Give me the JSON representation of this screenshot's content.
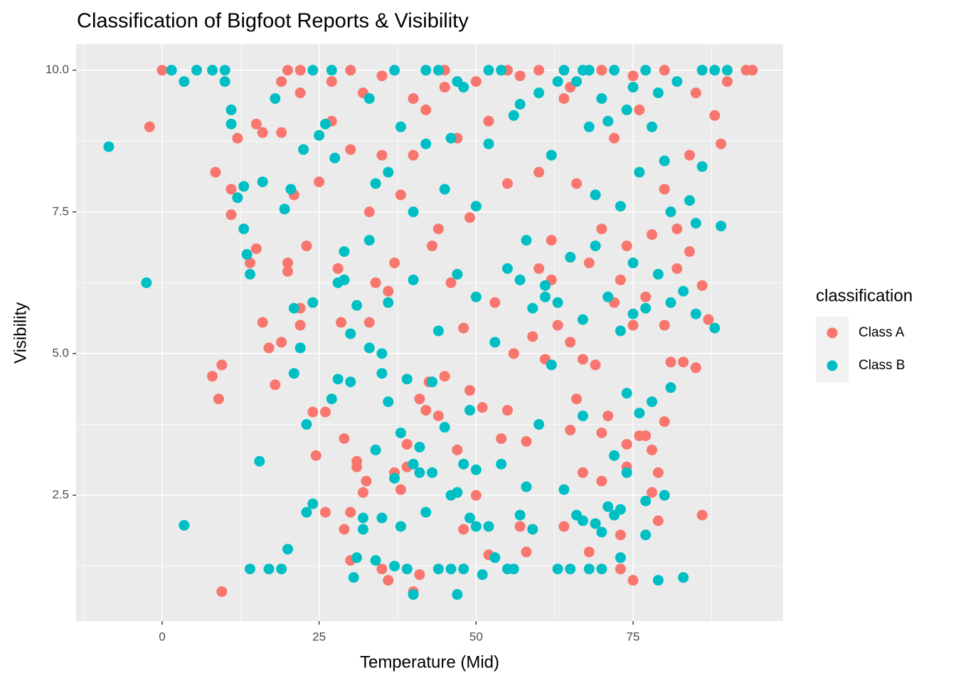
{
  "chart_data": {
    "type": "scatter",
    "title": "Classification of Bigfoot Reports & Visibility",
    "x_label": "Temperature (Mid)",
    "y_label": "Visibility",
    "legend_title": "classification",
    "legend_position": "right",
    "grid": true,
    "xlim": [
      -13.7,
      98.9
    ],
    "ylim": [
      0.28,
      10.46
    ],
    "xticks": [
      0,
      25,
      50,
      75
    ],
    "yticks": [
      {
        "value": 2.5,
        "label": "2.5"
      },
      {
        "value": 5,
        "label": "5.0"
      },
      {
        "value": 7.5,
        "label": "7.5"
      },
      {
        "value": 10,
        "label": "10.0"
      }
    ],
    "xminor": [
      -12.5,
      12.5,
      37.5,
      62.5,
      87.5
    ],
    "yminor": [
      1.25,
      3.75,
      6.25,
      8.75
    ],
    "series": [
      {
        "name": "Class A",
        "color": "#F8766D",
        "x": [
          0,
          -2,
          8.5,
          11,
          11,
          12,
          15,
          14,
          16,
          17,
          18,
          19,
          20,
          20,
          21,
          22,
          23,
          24,
          24.5,
          26,
          26,
          8,
          9,
          9.5,
          9.5,
          22,
          25,
          28,
          28.5,
          29,
          29,
          30,
          30,
          31,
          31,
          32,
          32.5,
          33,
          34,
          35,
          36,
          37,
          38,
          39,
          39,
          40,
          41,
          41,
          42,
          42.5,
          44,
          45,
          47,
          48,
          49,
          50,
          51,
          52,
          54,
          55,
          57,
          58,
          58,
          60,
          62,
          64,
          65,
          66,
          67,
          68,
          70,
          70,
          71,
          73,
          73,
          74,
          74,
          75,
          76,
          77,
          78,
          78,
          79,
          79,
          80,
          81,
          83,
          85,
          86,
          87,
          88,
          89,
          90,
          93,
          94,
          35,
          38,
          40,
          42,
          44,
          45,
          47,
          49,
          52,
          55,
          57,
          60,
          62,
          64,
          66,
          68,
          70,
          72,
          74,
          76,
          78,
          80,
          82,
          84,
          30,
          32,
          35,
          40,
          45,
          50,
          55,
          60,
          65,
          70,
          75,
          80,
          85,
          20,
          22,
          27,
          19,
          22,
          15,
          16,
          19,
          27,
          30,
          33,
          36,
          37,
          43,
          46,
          48,
          53,
          56,
          59,
          61,
          63,
          65,
          67,
          69,
          72,
          73,
          75,
          77,
          80,
          82,
          84,
          86
        ],
        "values": [
          10,
          9,
          8.2,
          7.9,
          7.45,
          8.8,
          6.85,
          6.6,
          5.55,
          5.1,
          4.45,
          5.2,
          6.6,
          6.45,
          7.8,
          5.8,
          6.9,
          3.97,
          3.2,
          3.97,
          2.2,
          4.6,
          4.2,
          4.8,
          0.8,
          5.5,
          8.03,
          6.5,
          5.55,
          3.5,
          1.9,
          2.2,
          1.35,
          3.1,
          3.0,
          2.55,
          2.75,
          5.55,
          6.25,
          1.2,
          1.0,
          2.9,
          2.6,
          3.4,
          3.0,
          0.8,
          1.1,
          4.2,
          4.0,
          4.5,
          3.9,
          4.6,
          3.3,
          1.9,
          4.35,
          2.5,
          4.05,
          1.45,
          3.5,
          4.0,
          1.95,
          3.45,
          1.5,
          6.5,
          6.3,
          1.95,
          3.65,
          4.2,
          2.9,
          1.5,
          2.75,
          3.6,
          3.9,
          1.8,
          1.2,
          3.4,
          3.0,
          1.0,
          3.55,
          3.55,
          3.3,
          2.55,
          2.9,
          2.05,
          3.8,
          4.85,
          4.85,
          4.75,
          2.15,
          5.6,
          9.2,
          8.7,
          9.8,
          10,
          10,
          8.5,
          7.8,
          8.5,
          9.3,
          7.2,
          9.7,
          8.8,
          7.4,
          9.1,
          8.0,
          9.9,
          8.2,
          7.0,
          9.5,
          8.0,
          6.6,
          7.2,
          8.8,
          6.9,
          9.3,
          7.1,
          7.9,
          6.5,
          8.5,
          10,
          9.6,
          9.9,
          9.5,
          10,
          9.8,
          10,
          10,
          9.7,
          10,
          9.9,
          10,
          9.6,
          10,
          9.6,
          9.8,
          9.8,
          10,
          9.05,
          8.9,
          8.9,
          9.1,
          8.6,
          7.5,
          6.1,
          6.6,
          6.9,
          6.25,
          5.45,
          5.9,
          5.0,
          5.3,
          4.9,
          5.5,
          5.2,
          4.9,
          4.8,
          5.9,
          6.3,
          5.5,
          6.0,
          5.5,
          7.2,
          6.8,
          6.2
        ]
      },
      {
        "name": "Class B",
        "color": "#00BFC4",
        "x": [
          -8.5,
          -2.5,
          1.5,
          3.5,
          3.5,
          5.5,
          8,
          10,
          10,
          11,
          11,
          12,
          13,
          13,
          13.5,
          14,
          14,
          15.5,
          16,
          17,
          18,
          19,
          19.5,
          20,
          20.5,
          21,
          21,
          22,
          22.5,
          23,
          23,
          24,
          24,
          25,
          26,
          27,
          27.5,
          28,
          28,
          29,
          29,
          30,
          30,
          30.5,
          31,
          31,
          32,
          32,
          33,
          33,
          34,
          34,
          35,
          35,
          35,
          36,
          36,
          37,
          37,
          38,
          38,
          39,
          39,
          40,
          40,
          40,
          41,
          41,
          42,
          43,
          43,
          44,
          44,
          45,
          46,
          46,
          47,
          47,
          48,
          48,
          49,
          49,
          50,
          50,
          51,
          52,
          53,
          54,
          55,
          56,
          57,
          58,
          59,
          60,
          61,
          62,
          63,
          64,
          65,
          66,
          67,
          67,
          68,
          69,
          70,
          70,
          71,
          72,
          72,
          73,
          73,
          74,
          74,
          75,
          76,
          77,
          77,
          78,
          79,
          80,
          81,
          81,
          83,
          85,
          86,
          88,
          89,
          90,
          36,
          38,
          40,
          42,
          44,
          46,
          48,
          50,
          52,
          54,
          56,
          58,
          60,
          62,
          64,
          66,
          67,
          68,
          69,
          70,
          72,
          73,
          74,
          76,
          77,
          78,
          80,
          82,
          84,
          86,
          88,
          33,
          37,
          42,
          47,
          52,
          57,
          63,
          68,
          71,
          75,
          79,
          81,
          83,
          85,
          27,
          24,
          34,
          45,
          47,
          50,
          53,
          55,
          57,
          59,
          61,
          63,
          65,
          67,
          69,
          71,
          73,
          75,
          77,
          79
        ],
        "values": [
          8.65,
          6.25,
          10,
          9.8,
          1.97,
          10,
          10,
          9.8,
          10,
          9.05,
          9.3,
          7.75,
          7.95,
          7.2,
          6.75,
          6.4,
          1.2,
          3.1,
          8.03,
          1.2,
          9.5,
          1.2,
          7.55,
          1.55,
          7.9,
          5.8,
          4.65,
          5.1,
          8.6,
          2.2,
          3.75,
          5.9,
          2.35,
          8.85,
          9.05,
          4.2,
          8.45,
          4.55,
          6.25,
          6.8,
          6.3,
          4.5,
          5.35,
          1.05,
          1.4,
          5.85,
          1.9,
          2.1,
          7.0,
          5.1,
          1.35,
          3.3,
          2.1,
          4.65,
          5.0,
          4.15,
          5.9,
          2.8,
          1.25,
          3.6,
          1.95,
          1.2,
          4.55,
          0.75,
          3.05,
          6.3,
          3.35,
          2.9,
          2.2,
          2.9,
          4.5,
          1.2,
          5.4,
          3.7,
          2.5,
          1.2,
          0.75,
          2.55,
          3.05,
          1.2,
          2.1,
          4.0,
          2.95,
          1.95,
          1.1,
          1.95,
          1.4,
          3.05,
          1.2,
          1.2,
          2.15,
          2.65,
          1.9,
          3.75,
          6.2,
          4.8,
          1.2,
          2.6,
          1.2,
          2.15,
          3.9,
          2.05,
          1.2,
          2.0,
          1.85,
          1.2,
          2.3,
          2.15,
          3.2,
          2.25,
          1.4,
          2.9,
          4.3,
          5.7,
          3.95,
          2.4,
          1.8,
          4.15,
          1.0,
          2.5,
          4.4,
          5.9,
          1.05,
          5.7,
          8.3,
          5.45,
          7.25,
          10,
          8.2,
          9.0,
          7.5,
          8.7,
          10,
          8.8,
          9.7,
          7.6,
          8.7,
          10,
          9.2,
          7.0,
          9.6,
          8.5,
          10,
          9.8,
          10,
          9.0,
          7.8,
          9.5,
          10,
          7.6,
          9.3,
          8.2,
          10,
          9.0,
          8.4,
          9.8,
          7.7,
          10,
          10,
          9.5,
          10,
          10,
          9.8,
          10,
          9.4,
          9.8,
          10,
          9.1,
          9.7,
          9.6,
          7.5,
          6.1,
          7.3,
          10,
          10,
          8.0,
          7.9,
          6.4,
          6.0,
          5.2,
          6.5,
          6.3,
          5.8,
          6.0,
          5.9,
          6.7,
          5.6,
          6.9,
          6.0,
          5.4,
          6.6,
          5.8,
          6.4
        ]
      }
    ]
  }
}
